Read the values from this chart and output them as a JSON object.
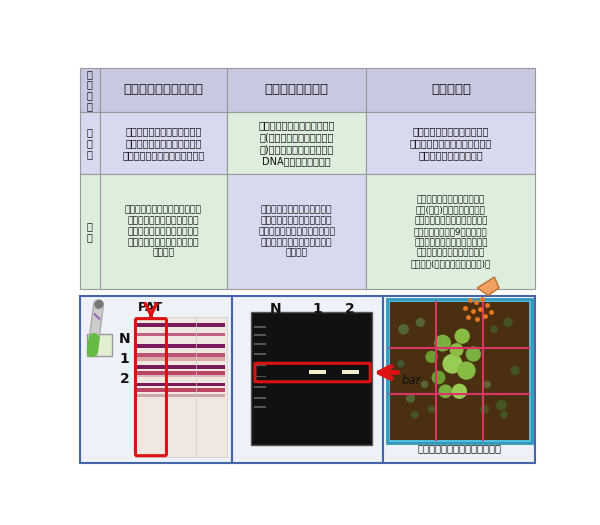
{
  "bg_color": "#ffffff",
  "header_bg": "#c8c8e0",
  "row1_bg": "#d8d8ee",
  "row2_bg": "#ddeedd",
  "border_color": "#999999",
  "text_color": "#111111",
  "title_col0": "検\n出\n対\n象",
  "title_col1": "除草剤耐性タンパク質",
  "title_col2": "除草剤耐性遺伝子",
  "title_col3": "除草剤耐性",
  "row1_label": "調\nべ\n方",
  "row1_col1": "植物の組織に、除草剤耐性タ\nンパク質が存在するかどうか\nを免疫反応を利用して調べる。",
  "row1_col2": "遺伝子組換えによる外来遺伝\n子(ここでは除草剤耐性遺伝\n子)を持っているかどうかを\nDNA配列で確認する。",
  "row1_col3": "植物が実際に除草剤に耐性と\nなっているかどうかを除草剤を\n散布することで調べる。",
  "row2_label": "特\n徴",
  "row2_col1": "インフルエンザ診断と同じよう\nに簡単に調べられる。下図の\n赤枠内部分で、紫色の線が除\n草剤タンパク質の存在を表し\nている。",
  "row2_col2": "除草剤耐性タンパク質の情報\nを持つ遺伝子の存在が正確に\n調べられる。下図の赤枠内で、\n白い線が遺伝子の存在を表し\nている。",
  "row2_col3": "種子をまいて発芽させ育てた\n植物(実生)の除草剤耐性とい\nう性質を確実に調べられる。下\n図では線で示した9区画で生育\nさせた実生のうち、中央の区画\nの実生だけが除草剤耐性を示\nしている(つまり枯れていない)。",
  "bottom_label": "グルホシネート耐性の実生試料",
  "arrow_color": "#e87820",
  "red_color": "#dd1111",
  "panel_border": "#4466aa",
  "panel_bg": "#eef2f8"
}
